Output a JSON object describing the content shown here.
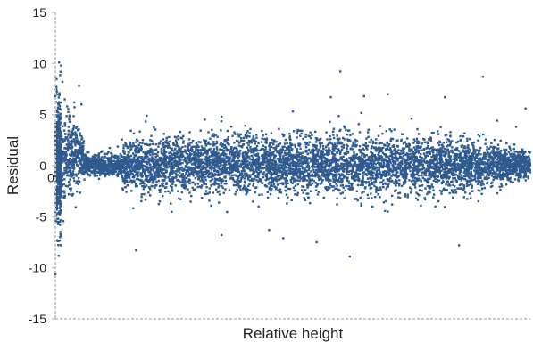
{
  "chart_data": {
    "type": "scatter",
    "title": "",
    "xlabel": "Relative height",
    "ylabel": "Residual",
    "xlim": [
      0,
      1
    ],
    "ylim": [
      -15,
      15
    ],
    "y_ticks": [
      -15,
      -10,
      -5,
      0,
      5,
      10,
      15
    ],
    "y_tick_labels": [
      "-15",
      "-10",
      "-5",
      "0",
      "5",
      "10",
      "15"
    ],
    "x_tick_labels": [],
    "x_origin_label": "0",
    "grid": false,
    "legend": "none",
    "point_color": "#2f5a8f",
    "series": [
      {
        "values_description_note": null,
        "points": [
          [
            0.008,
            10.1
          ],
          [
            0.012,
            9.8
          ],
          [
            0.015,
            8.2
          ],
          [
            0.02,
            6.5
          ],
          [
            0.025,
            5.8
          ],
          [
            0.03,
            4.9
          ],
          [
            0.01,
            -5.8
          ],
          [
            0.006,
            -5.2
          ],
          [
            0.012,
            -4.5
          ],
          [
            0.004,
            -3.6
          ],
          [
            0.005,
            0.0
          ],
          [
            0.008,
            2.2
          ],
          [
            0.018,
            -2.5
          ],
          [
            0.028,
            3.1
          ],
          [
            0.04,
            6.2
          ],
          [
            0.05,
            7.8
          ],
          [
            0.055,
            6.0
          ],
          [
            0.06,
            2.4
          ],
          [
            0.07,
            1.3
          ],
          [
            0.08,
            0.9
          ],
          [
            0.1,
            -0.5
          ],
          [
            0.13,
            0.4
          ],
          [
            0.15,
            0.5
          ],
          [
            0.17,
            2.3
          ],
          [
            0.18,
            -1.0
          ],
          [
            0.2,
            2.5
          ],
          [
            0.22,
            -3.5
          ],
          [
            0.17,
            -8.3
          ],
          [
            0.25,
            1.2
          ],
          [
            0.3,
            -2.1
          ],
          [
            0.35,
            4.8
          ],
          [
            0.4,
            3.9
          ],
          [
            0.45,
            -6.3
          ],
          [
            0.5,
            5.3
          ],
          [
            0.55,
            -7.5
          ],
          [
            0.6,
            3.5
          ],
          [
            0.62,
            -8.9
          ],
          [
            0.58,
            6.7
          ],
          [
            0.65,
            6.8
          ],
          [
            0.7,
            -4.5
          ],
          [
            0.75,
            4.6
          ],
          [
            0.8,
            -4.0
          ],
          [
            0.82,
            6.7
          ],
          [
            0.85,
            -7.8
          ],
          [
            0.9,
            8.7
          ],
          [
            0.93,
            4.4
          ],
          [
            0.97,
            3.8
          ],
          [
            0.99,
            5.6
          ],
          [
            0.6,
            9.2
          ],
          [
            0.7,
            7.0
          ],
          [
            0.35,
            -6.8
          ],
          [
            0.48,
            -7.1
          ]
        ]
      }
    ]
  }
}
